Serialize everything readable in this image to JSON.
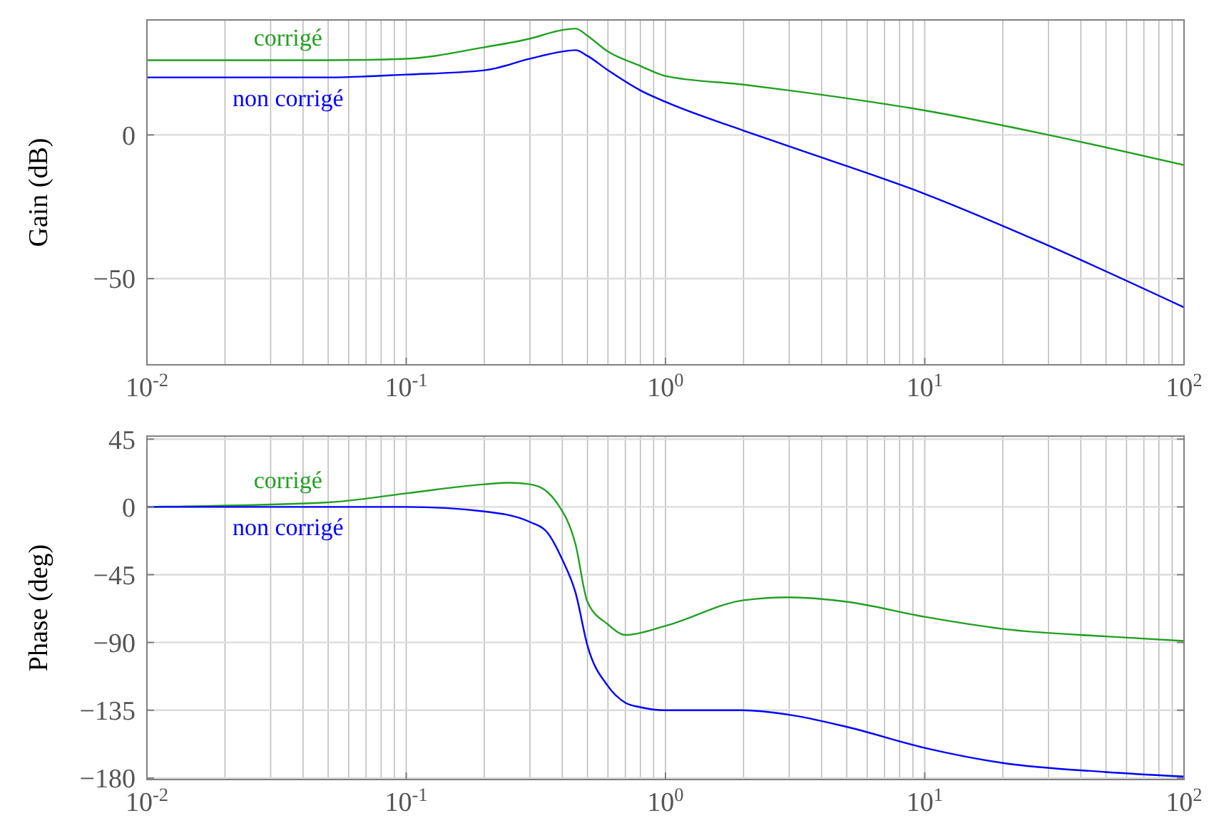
{
  "chart_data": [
    {
      "type": "line",
      "ylabel": "Gain (dB)",
      "log": "x",
      "grid": true,
      "xlim": [
        0.01,
        100
      ],
      "ylim": [
        -80,
        40
      ],
      "xticks": [
        {
          "value": 0.01,
          "label": "10$^{-2}$"
        },
        {
          "value": 0.1,
          "label": "10$^{-1}$"
        },
        {
          "value": 1,
          "label": "10$^{0}$"
        },
        {
          "value": 10,
          "label": "10$^{1}$"
        },
        {
          "value": 100,
          "label": "10$^{2}$"
        }
      ],
      "yticks": [
        {
          "value": -50,
          "label": "−50"
        },
        {
          "value": 0,
          "label": "0"
        }
      ],
      "x": [
        0.01,
        0.05,
        0.1,
        0.2,
        0.3,
        0.4,
        0.45,
        0.5,
        0.6,
        0.8,
        1,
        2,
        3,
        10,
        30,
        100
      ],
      "series": [
        {
          "name": "corrigé",
          "color": "#22a022",
          "values": [
            26,
            26,
            26.5,
            30.5,
            33.5,
            36.5,
            37,
            34.5,
            29,
            24,
            20.5,
            17.5,
            15.5,
            8.5,
            0,
            -10.5
          ]
        },
        {
          "name": "non corrigé",
          "color": "#0000ff",
          "values": [
            20,
            20,
            21,
            22.5,
            26.5,
            29,
            29.5,
            27.5,
            22.5,
            15.5,
            11.5,
            1.5,
            -4,
            -20.5,
            -38.5,
            -60
          ]
        }
      ]
    },
    {
      "type": "line",
      "ylabel": "Phase (deg)",
      "log": "x",
      "grid": true,
      "xlim": [
        0.01,
        100
      ],
      "ylim": [
        -181,
        47
      ],
      "xticks": [
        {
          "value": 0.01,
          "label": "10$^{-2}$"
        },
        {
          "value": 0.1,
          "label": "10$^{-1}$"
        },
        {
          "value": 1,
          "label": "10$^{0}$"
        },
        {
          "value": 10,
          "label": "10$^{1}$"
        },
        {
          "value": 100,
          "label": "10$^{2}$"
        }
      ],
      "yticks": [
        45,
        {
          "value": 0,
          "label": "0"
        },
        {
          "value": -45,
          "label": "−45"
        },
        {
          "value": -90,
          "label": "−90"
        },
        {
          "value": -135,
          "label": "−135"
        },
        {
          "value": -180,
          "label": "−180"
        }
      ],
      "series": [
        {
          "name": "corrigé",
          "color": "#22a022",
          "x": [
            0.01,
            0.05,
            0.1,
            0.2,
            0.25,
            0.3,
            0.35,
            0.38,
            0.45,
            0.5,
            0.6,
            0.7,
            1,
            2,
            3,
            5,
            10,
            20,
            50,
            100
          ],
          "values": [
            0,
            3,
            9,
            15,
            16,
            15,
            10,
            3,
            -25,
            -63,
            -78,
            -85,
            -79,
            -62,
            -60,
            -63,
            -73,
            -81,
            -86,
            -89
          ]
        },
        {
          "name": "non corrigé",
          "color": "#0000ff",
          "x": [
            0.01,
            0.1,
            0.2,
            0.3,
            0.35,
            0.4,
            0.45,
            0.5,
            0.6,
            0.7,
            0.8,
            1,
            2,
            3,
            5,
            10,
            20,
            50,
            100
          ],
          "values": [
            0,
            0,
            -3,
            -10,
            -17,
            -35,
            -57,
            -92,
            -119,
            -130,
            -133,
            -135,
            -135,
            -138,
            -146,
            -160,
            -170,
            -176,
            -179
          ]
        }
      ]
    }
  ]
}
